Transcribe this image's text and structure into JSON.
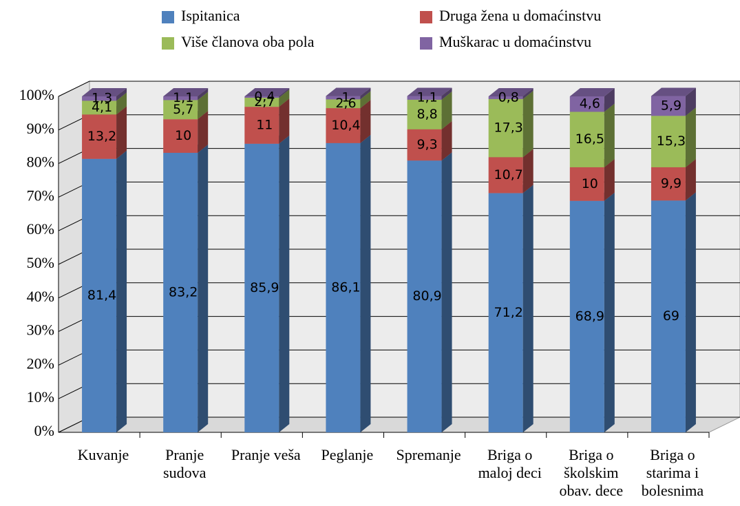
{
  "chart_data": {
    "type": "bar3d_stacked",
    "categories": [
      "Kuvanje",
      "Pranje sudova",
      "Pranje veša",
      "Peglanje",
      "Spremanje",
      "Briga o maloj deci",
      "Briga o školskim obav. dece",
      "Briga o starima i bolesnima"
    ],
    "series": [
      {
        "name": "Ispitanica",
        "color": "#4f81bd",
        "values": [
          81.4,
          83.2,
          85.9,
          86.1,
          80.9,
          71.2,
          68.9,
          69
        ],
        "value_labels": [
          "81,4",
          "83,2",
          "85,9",
          "86,1",
          "80,9",
          "71,2",
          "68,9",
          "69"
        ]
      },
      {
        "name": "Druga žena u domaćinstvu",
        "color": "#c0504d",
        "values": [
          13.2,
          10,
          11,
          10.4,
          9.3,
          10.7,
          10,
          9.9
        ],
        "value_labels": [
          "13,2",
          "10",
          "11",
          "10,4",
          "9,3",
          "10,7",
          "10",
          "9,9"
        ]
      },
      {
        "name": "Više članova oba pola",
        "color": "#9bbb59",
        "values": [
          4.1,
          5.7,
          2.7,
          2.6,
          8.8,
          17.3,
          16.5,
          15.3
        ],
        "value_labels": [
          "4,1",
          "5,7",
          "2,7",
          "2,6",
          "8,8",
          "17,3",
          "16,5",
          "15,3"
        ]
      },
      {
        "name": "Muškarac u domaćinstvu",
        "color": "#8064a2",
        "values": [
          1.3,
          1.1,
          0.4,
          1,
          1.1,
          0.8,
          4.6,
          5.9
        ],
        "value_labels": [
          "1,3",
          "1,1",
          "0,4",
          "1",
          "1,1",
          "0,8",
          "4,6",
          "5,9"
        ]
      }
    ],
    "ylim": [
      0,
      100
    ],
    "yticks": [
      {
        "value": 0,
        "label": "0%"
      },
      {
        "value": 10,
        "label": "10%"
      },
      {
        "value": 20,
        "label": "20%"
      },
      {
        "value": 30,
        "label": "30%"
      },
      {
        "value": 40,
        "label": "40%"
      },
      {
        "value": 50,
        "label": "50%"
      },
      {
        "value": 60,
        "label": "60%"
      },
      {
        "value": 70,
        "label": "70%"
      },
      {
        "value": 80,
        "label": "80%"
      },
      {
        "value": 90,
        "label": "90%"
      },
      {
        "value": 100,
        "label": "100%"
      }
    ],
    "grid": true,
    "legend": "top"
  }
}
